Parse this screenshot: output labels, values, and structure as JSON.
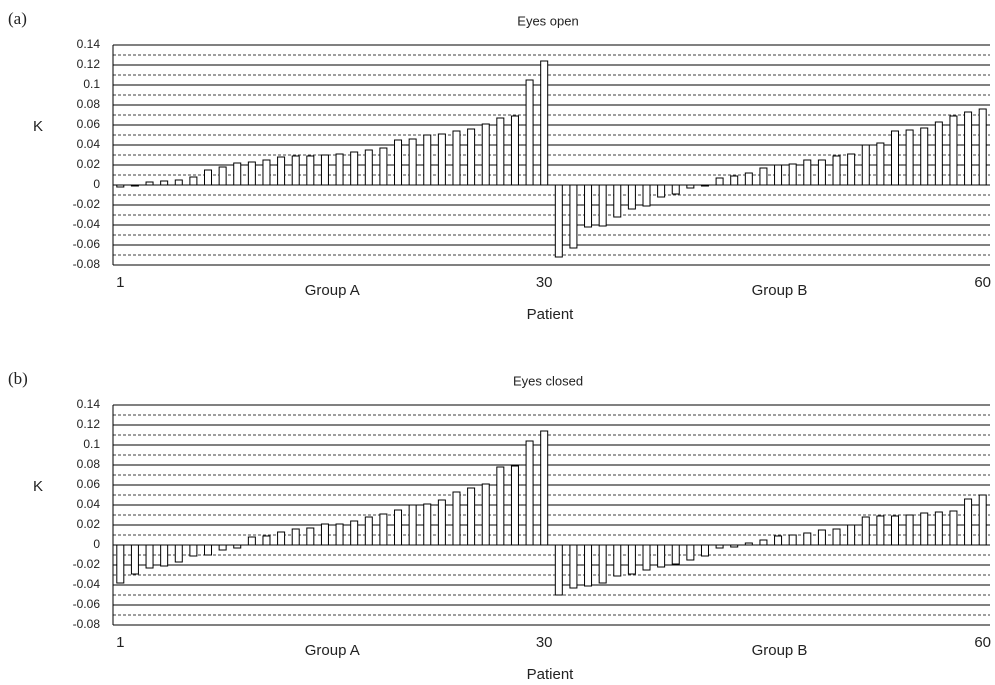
{
  "chart_data": [
    {
      "type": "bar",
      "panel_label": "(a)",
      "title": "Eyes open",
      "x_label": "Patient",
      "y_label": "K",
      "annotations": [
        "Group A",
        "Group B"
      ],
      "categories": [
        "1",
        null,
        null,
        null,
        null,
        null,
        null,
        null,
        null,
        null,
        null,
        null,
        null,
        null,
        null,
        null,
        null,
        null,
        null,
        null,
        null,
        null,
        null,
        null,
        null,
        null,
        null,
        null,
        null,
        "30",
        null,
        null,
        null,
        null,
        null,
        null,
        null,
        null,
        null,
        null,
        null,
        null,
        null,
        null,
        null,
        null,
        null,
        null,
        null,
        null,
        null,
        null,
        null,
        null,
        null,
        null,
        null,
        null,
        null,
        "60"
      ],
      "values": [
        -0.002,
        -0.001,
        0.003,
        0.004,
        0.005,
        0.008,
        0.015,
        0.018,
        0.022,
        0.023,
        0.025,
        0.028,
        0.029,
        0.029,
        0.03,
        0.031,
        0.033,
        0.035,
        0.037,
        0.045,
        0.046,
        0.05,
        0.051,
        0.054,
        0.056,
        0.061,
        0.067,
        0.069,
        0.105,
        0.124,
        -0.072,
        -0.063,
        -0.042,
        -0.041,
        -0.032,
        -0.024,
        -0.021,
        -0.012,
        -0.009,
        -0.003,
        -0.001,
        0.007,
        0.009,
        0.012,
        0.017,
        0.02,
        0.021,
        0.025,
        0.025,
        0.029,
        0.031,
        0.04,
        0.042,
        0.054,
        0.055,
        0.057,
        0.063,
        0.069,
        0.073,
        0.076
      ],
      "color": "#ffffff",
      "edgecolor": "#000000",
      "ylim": [
        -0.08,
        0.14
      ],
      "yticks": [
        -0.08,
        -0.06,
        -0.04,
        -0.02,
        0,
        0.02,
        0.04,
        0.06,
        0.08,
        0.1,
        0.12,
        0.14
      ],
      "grid": true,
      "minor_grid": true
    },
    {
      "type": "bar",
      "panel_label": "(b)",
      "title": "Eyes closed",
      "x_label": "Patient",
      "y_label": "K",
      "annotations": [
        "Group A",
        "Group B"
      ],
      "categories": [
        "1",
        null,
        null,
        null,
        null,
        null,
        null,
        null,
        null,
        null,
        null,
        null,
        null,
        null,
        null,
        null,
        null,
        null,
        null,
        null,
        null,
        null,
        null,
        null,
        null,
        null,
        null,
        null,
        null,
        "30",
        null,
        null,
        null,
        null,
        null,
        null,
        null,
        null,
        null,
        null,
        null,
        null,
        null,
        null,
        null,
        null,
        null,
        null,
        null,
        null,
        null,
        null,
        null,
        null,
        null,
        null,
        null,
        null,
        null,
        "60"
      ],
      "values": [
        -0.038,
        -0.029,
        -0.023,
        -0.021,
        -0.017,
        -0.011,
        -0.01,
        -0.005,
        -0.003,
        0.008,
        0.009,
        0.013,
        0.016,
        0.017,
        0.021,
        0.021,
        0.024,
        0.028,
        0.031,
        0.035,
        0.04,
        0.041,
        0.045,
        0.053,
        0.057,
        0.061,
        0.078,
        0.079,
        0.104,
        0.114,
        -0.05,
        -0.043,
        -0.041,
        -0.038,
        -0.031,
        -0.029,
        -0.025,
        -0.022,
        -0.019,
        -0.015,
        -0.011,
        -0.003,
        -0.002,
        0.002,
        0.005,
        0.009,
        0.01,
        0.012,
        0.015,
        0.016,
        0.02,
        0.028,
        0.029,
        0.029,
        0.03,
        0.032,
        0.033,
        0.034,
        0.046,
        0.05
      ],
      "color": "#ffffff",
      "edgecolor": "#000000",
      "ylim": [
        -0.08,
        0.14
      ],
      "yticks": [
        -0.08,
        -0.06,
        -0.04,
        -0.02,
        0,
        0.02,
        0.04,
        0.06,
        0.08,
        0.1,
        0.12,
        0.14
      ],
      "grid": true,
      "minor_grid": true
    }
  ]
}
